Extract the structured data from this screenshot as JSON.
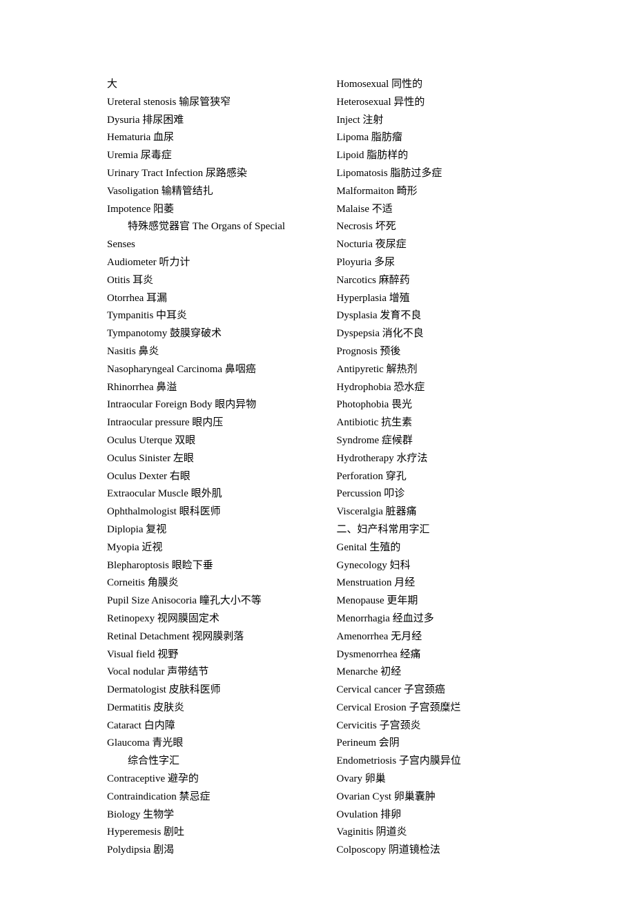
{
  "left": [
    {
      "text": "大"
    },
    {
      "text": "Ureteral stenosis  输尿管狭窄"
    },
    {
      "text": "Dysuria  排尿困难"
    },
    {
      "text": "Hematuria 血尿"
    },
    {
      "text": "Uremia 尿毒症"
    },
    {
      "text": "Urinary Tract Infection  尿路感染"
    },
    {
      "text": "Vasoligation  输精管结扎"
    },
    {
      "text": "Impotence  阳萎"
    },
    {
      "text": "特殊感觉器官   The Organs of Special",
      "indent": true
    },
    {
      "text": "Senses"
    },
    {
      "text": "Audiometer  听力计"
    },
    {
      "text": "Otitis 耳炎"
    },
    {
      "text": "Otorrhea 耳漏"
    },
    {
      "text": "Tympanitis 中耳炎"
    },
    {
      "text": "Tympanotomy  鼓膜穿破术"
    },
    {
      "text": "Nasitis 鼻炎"
    },
    {
      "text": "Nasopharyngeal Carcinoma 鼻咽癌"
    },
    {
      "text": "Rhinorrhea  鼻溢"
    },
    {
      "text": "Intraocular Foreign Body  眼内异物"
    },
    {
      "text": "Intraocular pressure  眼内压"
    },
    {
      "text": "Oculus Uterque  双眼"
    },
    {
      "text": "Oculus Sinister  左眼"
    },
    {
      "text": "Oculus Dexter  右眼"
    },
    {
      "text": "Extraocular Muscle  眼外肌"
    },
    {
      "text": "Ophthalmologist  眼科医师"
    },
    {
      "text": "Diplopia  复视"
    },
    {
      "text": "Myopia  近视"
    },
    {
      "text": "Blepharoptosis  眼睑下垂"
    },
    {
      "text": "Corneitis  角膜炎"
    },
    {
      "text": "Pupil Size Anisocoria 瞳孔大小不等"
    },
    {
      "text": "Retinopexy  视网膜固定术"
    },
    {
      "text": "Retinal Detachment  视网膜剥落"
    },
    {
      "text": "Visual field  视野"
    },
    {
      "text": "Vocal nodular 声带结节"
    },
    {
      "text": "Dermatologist 皮肤科医师"
    },
    {
      "text": "Dermatitis 皮肤炎"
    },
    {
      "text": "Cataract 白内障"
    },
    {
      "text": "Glaucoma 青光眼"
    },
    {
      "text": "综合性字汇",
      "indent": true
    },
    {
      "text": "Contraceptive 避孕的"
    },
    {
      "text": "Contraindication  禁忌症"
    },
    {
      "text": "Biology 生物学"
    },
    {
      "text": "Hyperemesis  剧吐"
    },
    {
      "text": "Polydipsia 剧渴"
    }
  ],
  "right": [
    {
      "text": "Homosexual  同性的"
    },
    {
      "text": "Heterosexual  异性的"
    },
    {
      "text": "Inject  注射"
    },
    {
      "text": "Lipoma  脂肪瘤"
    },
    {
      "text": "Lipoid  脂肪样的"
    },
    {
      "text": "Lipomatosis  脂肪过多症"
    },
    {
      "text": "Malformaiton  畸形"
    },
    {
      "text": "Malaise  不适"
    },
    {
      "text": "Necrosis 坏死"
    },
    {
      "text": "Nocturia  夜尿症"
    },
    {
      "text": "Ployuria  多尿"
    },
    {
      "text": "Narcotics 麻醉药"
    },
    {
      "text": "Hyperplasia  增殖"
    },
    {
      "text": "Dysplasia  发育不良"
    },
    {
      "text": "Dyspepsia  消化不良"
    },
    {
      "text": "Prognosis  预後"
    },
    {
      "text": "Antipyretic  解热剂"
    },
    {
      "text": "Hydrophobia  恐水症"
    },
    {
      "text": "Photophobia  畏光"
    },
    {
      "text": "Antibiotic 抗生素"
    },
    {
      "text": "Syndrome  症候群"
    },
    {
      "text": "Hydrotherapy  水疗法"
    },
    {
      "text": "Perforation  穿孔"
    },
    {
      "text": "Percussion 叩诊"
    },
    {
      "text": "Visceralgia 脏器痛"
    },
    {
      "text": "二、妇产科常用字汇"
    },
    {
      "text": "Genital  生殖的"
    },
    {
      "text": "Gynecology  妇科"
    },
    {
      "text": "Menstruation  月经"
    },
    {
      "text": "Menopause  更年期"
    },
    {
      "text": "Menorrhagia 经血过多"
    },
    {
      "text": "Amenorrhea  无月经"
    },
    {
      "text": "Dysmenorrhea 经痛"
    },
    {
      "text": "Menarche 初经"
    },
    {
      "text": "Cervical cancer  子宫颈癌"
    },
    {
      "text": "Cervical Erosion 子宫颈糜烂"
    },
    {
      "text": "Cervicitis 子宫颈炎"
    },
    {
      "text": "Perineum 会阴"
    },
    {
      "text": "Endometriosis 子宫内膜异位"
    },
    {
      "text": "Ovary  卵巢"
    },
    {
      "text": "Ovarian Cyst  卵巢囊肿"
    },
    {
      "text": "Ovulation 排卵"
    },
    {
      "text": "Vaginitis 阴道炎"
    },
    {
      "text": "Colposcopy  阴道镜检法"
    }
  ]
}
